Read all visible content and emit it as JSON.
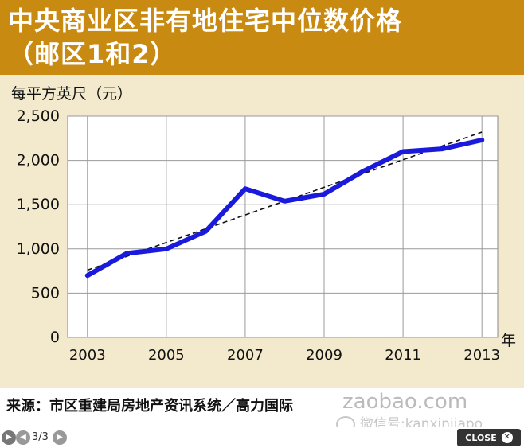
{
  "chart_data": {
    "type": "line",
    "title": "中央商业区非有地住宅中位数价格",
    "subtitle": "（邮区1和2）",
    "ylabel": "每平方英尺（元）",
    "xlabel": "年",
    "ylim": [
      0,
      2500
    ],
    "xlim": [
      2003,
      2013
    ],
    "y_ticks": [
      "2,500",
      "2,000",
      "1,500",
      "1,000",
      "500",
      "0"
    ],
    "y_tick_values": [
      2500,
      2000,
      1500,
      1000,
      500,
      0
    ],
    "x_ticks": [
      "2003",
      "2005",
      "2007",
      "2009",
      "2011",
      "2013"
    ],
    "x_tick_values": [
      2003,
      2005,
      2007,
      2009,
      2011,
      2013
    ],
    "grid": true,
    "series": [
      {
        "color": "#1a1adc",
        "x": [
          2003,
          2004,
          2005,
          2006,
          2007,
          2008,
          2009,
          2010,
          2011,
          2012,
          2013
        ],
        "values": [
          700,
          950,
          1000,
          1200,
          1680,
          1540,
          1620,
          1880,
          2100,
          2130,
          2230
        ]
      }
    ],
    "trendline": {
      "style": "dashed",
      "color": "#111111",
      "x": [
        2003,
        2013
      ],
      "values": [
        760,
        2320
      ]
    }
  },
  "source": "来源：市区重建局房地产资讯系统／高力国际",
  "watermark": "zaobao.com",
  "wechat": "微信号:kanxinjiapo",
  "nav": {
    "pager": "3/3",
    "close_label": "CLOSE"
  }
}
